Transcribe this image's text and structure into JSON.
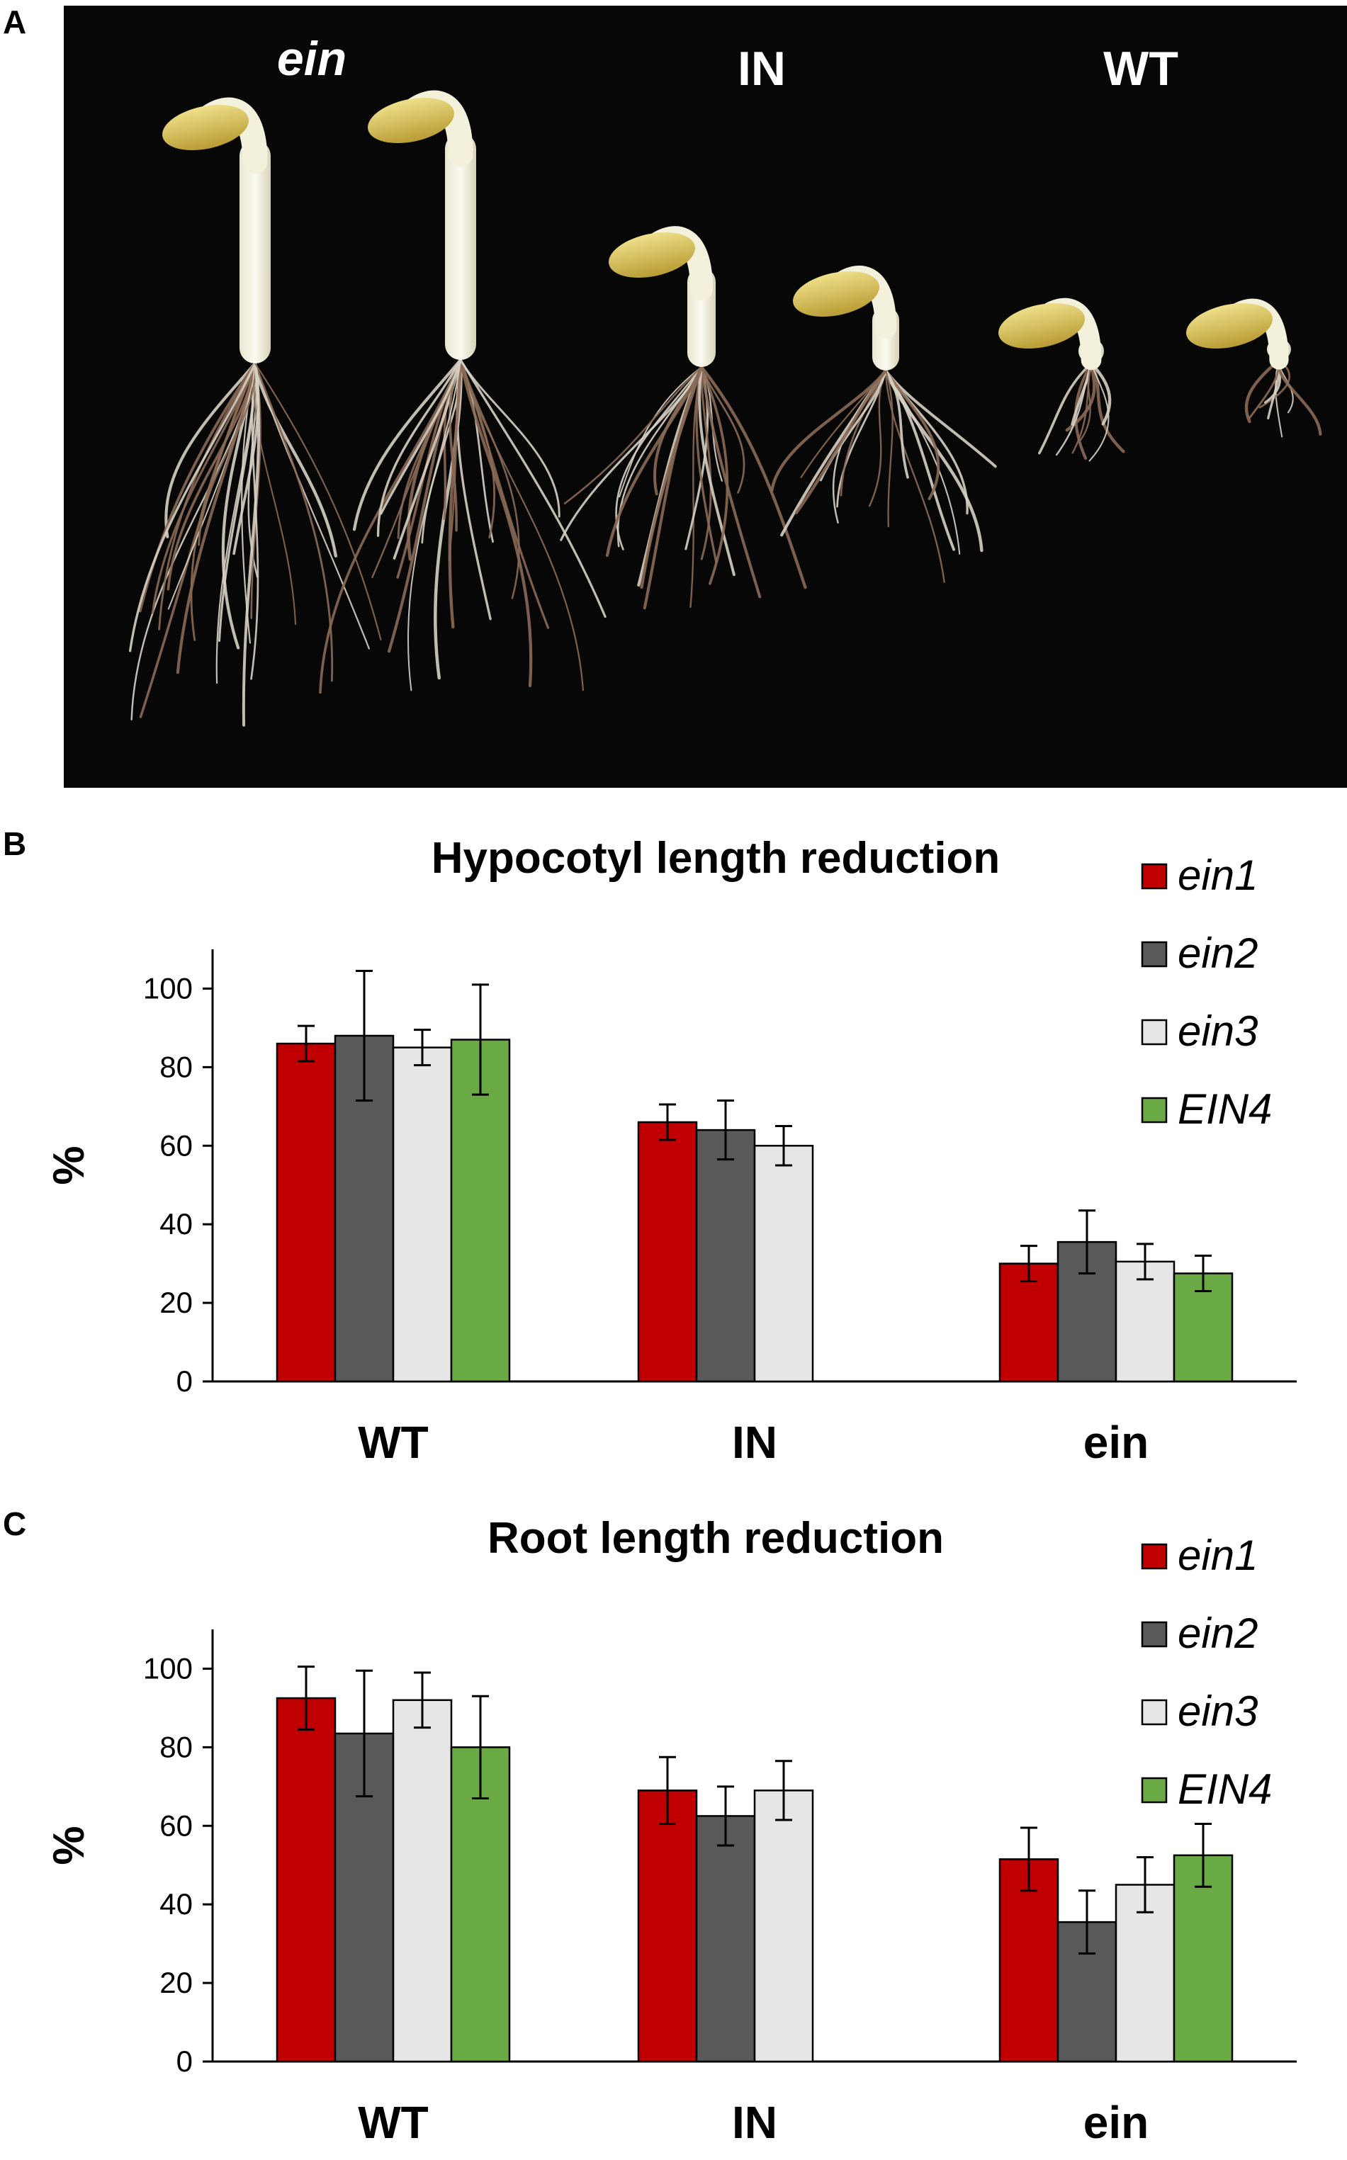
{
  "panels": {
    "a": {
      "letter": "A",
      "labels": [
        "ein",
        "IN",
        "WT"
      ]
    },
    "b": {
      "letter": "B"
    },
    "c": {
      "letter": "C"
    }
  },
  "colors": {
    "ein1": "#c00000",
    "ein2": "#595959",
    "ein3": "#e6e6e6",
    "EIN4": "#6aaa45"
  },
  "chart_data": [
    {
      "type": "bar",
      "title": "Hypocotyl length reduction",
      "ylabel": "%",
      "xlabel": "",
      "categories": [
        "WT",
        "IN",
        "ein"
      ],
      "ylim": [
        0,
        110
      ],
      "yticks": [
        0,
        20,
        40,
        60,
        80,
        100
      ],
      "legend": "top-right",
      "grid": false,
      "series": [
        {
          "name": "ein1",
          "color": "#c00000",
          "values": [
            86,
            66,
            30
          ],
          "errors": [
            4.5,
            4.5,
            4.5
          ]
        },
        {
          "name": "ein2",
          "color": "#595959",
          "values": [
            88,
            64,
            35.5
          ],
          "errors": [
            16.5,
            7.5,
            8
          ]
        },
        {
          "name": "ein3",
          "color": "#e6e6e6",
          "values": [
            85,
            60,
            30.5
          ],
          "errors": [
            4.5,
            5,
            4.5
          ]
        },
        {
          "name": "EIN4",
          "color": "#6aaa45",
          "values": [
            87,
            null,
            27.5
          ],
          "errors": [
            14,
            null,
            4.5
          ]
        }
      ]
    },
    {
      "type": "bar",
      "title": "Root length reduction",
      "ylabel": "%",
      "xlabel": "",
      "categories": [
        "WT",
        "IN",
        "ein"
      ],
      "ylim": [
        0,
        110
      ],
      "yticks": [
        0,
        20,
        40,
        60,
        80,
        100
      ],
      "legend": "top-right",
      "grid": false,
      "series": [
        {
          "name": "ein1",
          "color": "#c00000",
          "values": [
            92.5,
            69,
            51.5
          ],
          "errors": [
            8,
            8.5,
            8
          ]
        },
        {
          "name": "ein2",
          "color": "#595959",
          "values": [
            83.5,
            62.5,
            35.5
          ],
          "errors": [
            16,
            7.5,
            8
          ]
        },
        {
          "name": "ein3",
          "color": "#e6e6e6",
          "values": [
            92,
            69,
            45
          ],
          "errors": [
            7,
            7.5,
            7
          ]
        },
        {
          "name": "EIN4",
          "color": "#6aaa45",
          "values": [
            80,
            null,
            52.5
          ],
          "errors": [
            13,
            null,
            8
          ]
        }
      ]
    }
  ]
}
